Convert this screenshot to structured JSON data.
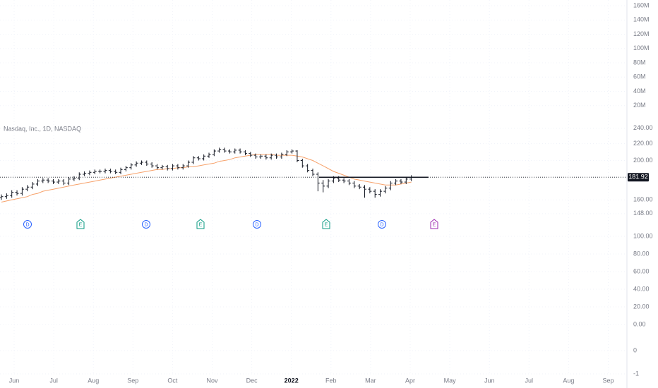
{
  "chart_data": {
    "type": "ohlc",
    "title": "Nasdaq, Inc., 1D, NASDAQ",
    "log_scale": true,
    "grid": true,
    "bar_color": "#131722",
    "ylim": [
      145,
      265
    ],
    "yticks": [
      {
        "value": 240,
        "label": "240.00"
      },
      {
        "value": 220,
        "label": "220.00"
      },
      {
        "value": 200,
        "label": "200.00"
      },
      {
        "value": 160,
        "label": "160.00"
      },
      {
        "value": 148,
        "label": "148.00"
      }
    ],
    "last_price": 181.92,
    "categories": [
      "Jun",
      "Jul",
      "Aug",
      "Sep",
      "Oct",
      "Nov",
      "Dec",
      "2022",
      "Feb",
      "Mar",
      "Apr",
      "May",
      "Jun",
      "Jul",
      "Aug",
      "Sep"
    ],
    "open": [
      162,
      163,
      164,
      167,
      166,
      170,
      172,
      175,
      178,
      179,
      178,
      177,
      178,
      176,
      180,
      181,
      185,
      186,
      187,
      188,
      188,
      189,
      188,
      187,
      190,
      192,
      195,
      197,
      198,
      196,
      194,
      192,
      193,
      191,
      194,
      192,
      194,
      198,
      203,
      202,
      205,
      207,
      211,
      213,
      211,
      210,
      212,
      210,
      208,
      206,
      204,
      205,
      203,
      206,
      204,
      207,
      210,
      211,
      200,
      194,
      189,
      185,
      176,
      173,
      178,
      181,
      179,
      178,
      176,
      173,
      172,
      170,
      168,
      165,
      168,
      171,
      176,
      178,
      177,
      180
    ],
    "high": [
      165,
      166,
      169,
      169,
      172,
      174,
      177,
      180,
      181,
      181,
      180,
      180,
      180,
      182,
      183,
      187,
      188,
      189,
      190,
      190,
      191,
      191,
      190,
      192,
      194,
      197,
      199,
      200,
      200,
      198,
      196,
      195,
      195,
      196,
      196,
      196,
      200,
      205,
      205,
      207,
      209,
      213,
      215,
      215,
      213,
      214,
      214,
      212,
      210,
      208,
      207,
      207,
      208,
      208,
      209,
      212,
      213,
      212,
      202,
      196,
      191,
      187,
      179,
      180,
      183,
      183,
      181,
      180,
      178,
      175,
      174,
      172,
      170,
      170,
      173,
      178,
      180,
      180,
      182,
      184
    ],
    "low": [
      160,
      161,
      162,
      164,
      164,
      168,
      170,
      173,
      176,
      176,
      175,
      175,
      174,
      174,
      178,
      179,
      183,
      184,
      185,
      186,
      186,
      186,
      185,
      185,
      188,
      190,
      193,
      195,
      194,
      192,
      190,
      190,
      189,
      189,
      190,
      190,
      192,
      196,
      200,
      200,
      203,
      205,
      209,
      209,
      208,
      208,
      208,
      206,
      204,
      202,
      202,
      201,
      201,
      202,
      202,
      205,
      208,
      198,
      192,
      187,
      183,
      168,
      167,
      171,
      176,
      177,
      176,
      174,
      171,
      170,
      162,
      166,
      162,
      163,
      166,
      169,
      174,
      175,
      175,
      178
    ],
    "close": [
      163,
      164,
      167,
      166,
      170,
      172,
      175,
      178,
      179,
      178,
      177,
      178,
      176,
      180,
      181,
      185,
      186,
      187,
      188,
      188,
      189,
      188,
      187,
      190,
      192,
      195,
      197,
      198,
      196,
      194,
      192,
      193,
      191,
      194,
      192,
      194,
      198,
      203,
      202,
      205,
      207,
      211,
      213,
      211,
      210,
      212,
      210,
      208,
      206,
      204,
      205,
      203,
      206,
      204,
      207,
      210,
      211,
      200,
      194,
      189,
      185,
      176,
      173,
      178,
      181,
      179,
      178,
      176,
      173,
      172,
      170,
      168,
      165,
      168,
      171,
      176,
      178,
      177,
      180,
      181.92
    ],
    "ma": {
      "color": "#f7a26b",
      "values": [
        158,
        159,
        160,
        161,
        162,
        163,
        165,
        166,
        168,
        169,
        170,
        171,
        172,
        173,
        174,
        175,
        176,
        177,
        178,
        179,
        180,
        181,
        182,
        183,
        184,
        185,
        186,
        187,
        188,
        189,
        190,
        190,
        191,
        191,
        192,
        192,
        193,
        193,
        194,
        195,
        196,
        197,
        199,
        200,
        201,
        203,
        204,
        205,
        206,
        207,
        207,
        207,
        207,
        206,
        206,
        206,
        206,
        205,
        204,
        202,
        200,
        197,
        194,
        191,
        188,
        186,
        184,
        182,
        180,
        179,
        178,
        177,
        176,
        175,
        174,
        174,
        174,
        175,
        176,
        177
      ]
    },
    "volume_axis": {
      "ylim": [
        0,
        168
      ],
      "yticks": [
        {
          "value": 160,
          "label": "160M"
        },
        {
          "value": 140,
          "label": "140M"
        },
        {
          "value": 120,
          "label": "120M"
        },
        {
          "value": 100,
          "label": "100M"
        },
        {
          "value": 80,
          "label": "80M"
        },
        {
          "value": 60,
          "label": "60M"
        },
        {
          "value": 40,
          "label": "40M"
        },
        {
          "value": 20,
          "label": "20M"
        }
      ]
    },
    "indicator_axis": {
      "ylim": [
        0,
        100
      ],
      "yticks": [
        {
          "value": 100,
          "label": "100.00"
        },
        {
          "value": 80,
          "label": "80.00"
        },
        {
          "value": 60,
          "label": "60.00"
        },
        {
          "value": 40,
          "label": "40.00"
        },
        {
          "value": 20,
          "label": "20.00"
        },
        {
          "value": 0,
          "label": "0.00"
        }
      ]
    },
    "indicator2_axis": {
      "ylim": [
        -1,
        0
      ],
      "yticks": [
        0,
        -1
      ]
    },
    "events": [
      {
        "label": "D",
        "color": "#2962ff"
      },
      {
        "label": "E",
        "color": "#089981"
      },
      {
        "label": "D",
        "color": "#2962ff"
      },
      {
        "label": "E",
        "color": "#089981"
      },
      {
        "label": "D",
        "color": "#2962ff"
      },
      {
        "label": "E",
        "color": "#089981"
      },
      {
        "label": "D",
        "color": "#2962ff"
      },
      {
        "label": "E",
        "color": "#9c27b0"
      }
    ]
  }
}
